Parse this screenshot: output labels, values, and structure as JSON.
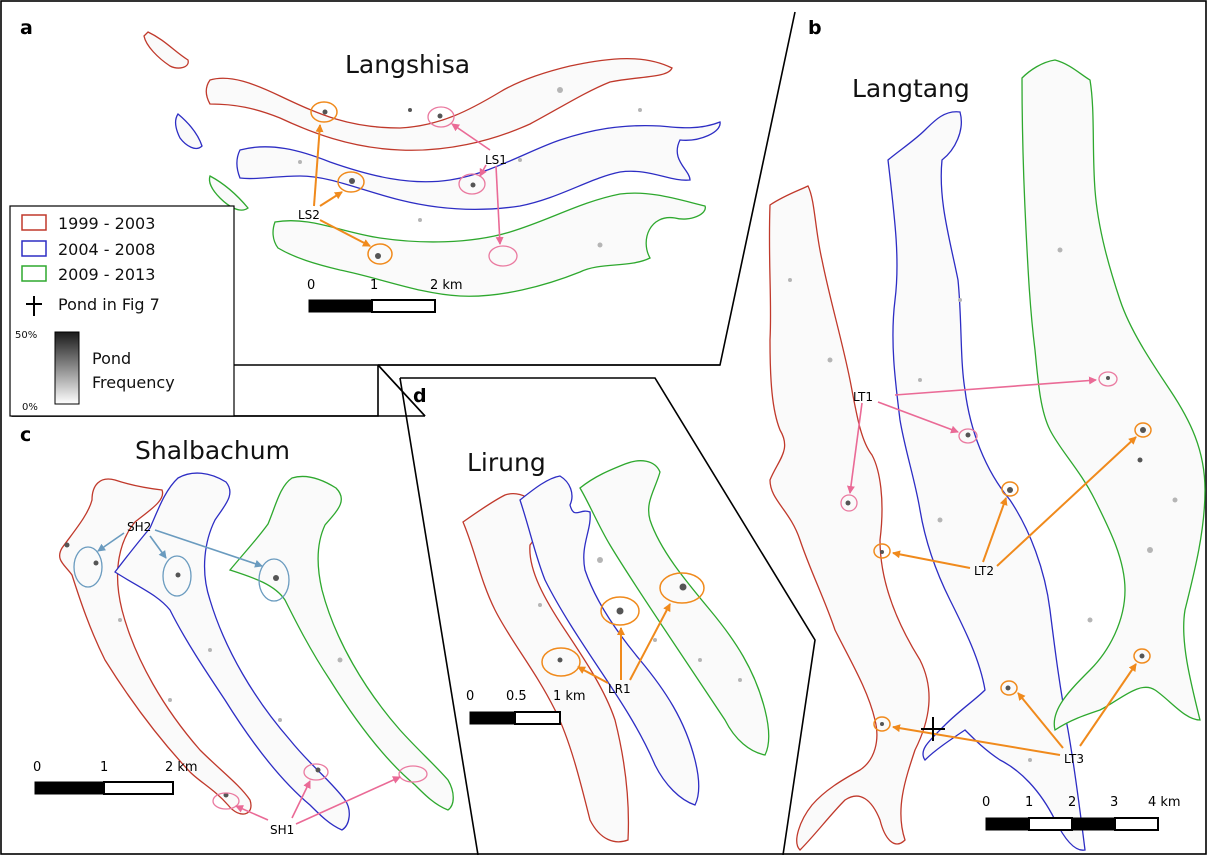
{
  "panels": {
    "a": {
      "letter": "a",
      "title": "Langshisa",
      "scale_ticks": [
        "0",
        "1",
        "2 km"
      ]
    },
    "b": {
      "letter": "b",
      "title": "Langtang",
      "scale_ticks": [
        "0",
        "1",
        "2",
        "3",
        "4 km"
      ]
    },
    "c": {
      "letter": "c",
      "title": "Shalbachum",
      "scale_ticks": [
        "0",
        "1",
        "2 km"
      ]
    },
    "d": {
      "letter": "d",
      "title": "Lirung",
      "scale_ticks": [
        "0",
        "0.5",
        "1 km"
      ]
    }
  },
  "legend": {
    "periods": [
      {
        "label": "1999 - 2003",
        "color": "#c0392b"
      },
      {
        "label": "2004 - 2008",
        "color": "#2d2dc4"
      },
      {
        "label": "2009 - 2013",
        "color": "#2ea82e"
      }
    ],
    "pond_marker_label": "Pond in Fig 7",
    "ramp_max": "50%",
    "ramp_min": "0%",
    "ramp_title_line1": "Pond",
    "ramp_title_line2": "Frequency"
  },
  "annotations": {
    "LS1": "LS1",
    "LS2": "LS2",
    "LT1": "LT1",
    "LT2": "LT2",
    "LT3": "LT3",
    "SH1": "SH1",
    "SH2": "SH2",
    "LR1": "LR1"
  },
  "colors": {
    "orange_arrow": "#f08a1c",
    "pink_arrow": "#ea6a96",
    "teal_arrow": "#6a9bbf"
  }
}
